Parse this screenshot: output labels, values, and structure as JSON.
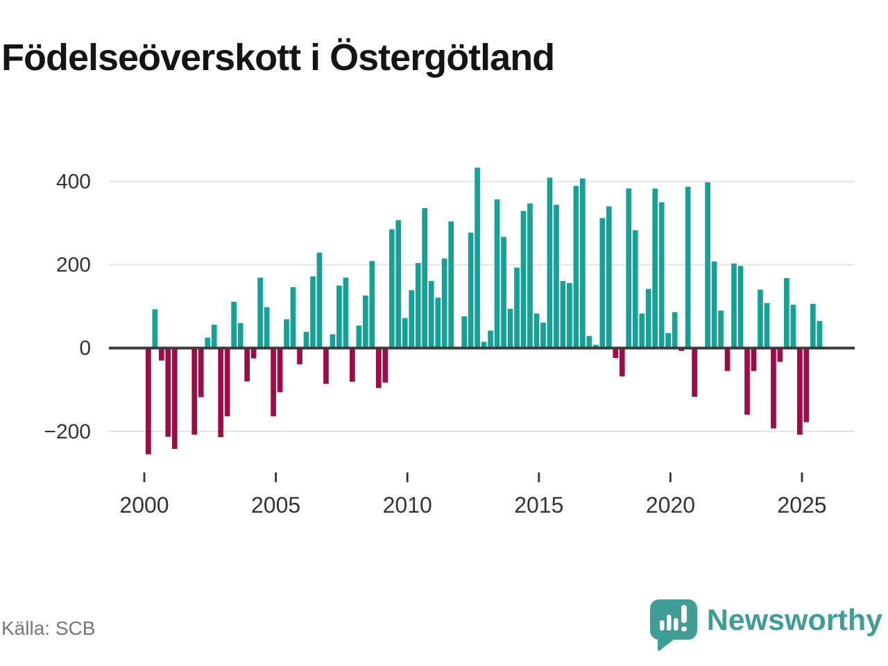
{
  "title": "Födelseöverskott i Östergötland",
  "source": "Källa: SCB",
  "branding": {
    "wordmark": "Newsworthy",
    "logo_icon": "bar-chart-speech-bubble-icon"
  },
  "colors": {
    "positive": "#17a095",
    "negative": "#9d0c45",
    "grid": "#e2e2e2",
    "zero_line": "#3c3c3c",
    "axis_text": "#333333",
    "title_text": "#141414",
    "source_text": "#767676",
    "brand_teal": "#3f9d95",
    "background": "#ffffff"
  },
  "chart_data": {
    "type": "bar",
    "title": "Födelseöverskott i Östergötland",
    "frequency": "quarterly",
    "xlabel": "",
    "ylabel": "",
    "x_ticks": [
      2000,
      2005,
      2010,
      2015,
      2020,
      2025
    ],
    "x_tick_labels": [
      "2000",
      "2005",
      "2010",
      "2015",
      "2020",
      "2025"
    ],
    "y_ticks": [
      400,
      200,
      0,
      -200
    ],
    "y_tick_labels": [
      "400",
      "200",
      "0",
      "−200"
    ],
    "ylim": [
      -270,
      450
    ],
    "grid": true,
    "legend": false,
    "missing_quarters": [
      "2001-Q2",
      "2001-Q3",
      "2011-Q4",
      "2021-Q1"
    ],
    "years": [
      {
        "year": 2000,
        "values": [
          -255,
          93,
          -30,
          -213
        ]
      },
      {
        "year": 2001,
        "values": [
          -242,
          null,
          null,
          -208
        ]
      },
      {
        "year": 2002,
        "values": [
          -118,
          25,
          56,
          -214
        ]
      },
      {
        "year": 2003,
        "values": [
          -164,
          111,
          60,
          -80
        ]
      },
      {
        "year": 2004,
        "values": [
          -25,
          169,
          98,
          -164
        ]
      },
      {
        "year": 2005,
        "values": [
          -106,
          69,
          146,
          -39
        ]
      },
      {
        "year": 2006,
        "values": [
          39,
          172,
          229,
          -86
        ]
      },
      {
        "year": 2007,
        "values": [
          33,
          150,
          169,
          -81
        ]
      },
      {
        "year": 2008,
        "values": [
          54,
          126,
          209,
          -96
        ]
      },
      {
        "year": 2009,
        "values": [
          -83,
          285,
          307,
          72
        ]
      },
      {
        "year": 2010,
        "values": [
          139,
          204,
          336,
          161
        ]
      },
      {
        "year": 2011,
        "values": [
          121,
          215,
          304,
          null
        ]
      },
      {
        "year": 2012,
        "values": [
          76,
          277,
          433,
          15
        ]
      },
      {
        "year": 2013,
        "values": [
          42,
          357,
          267,
          94
        ]
      },
      {
        "year": 2014,
        "values": [
          193,
          329,
          347,
          83
        ]
      },
      {
        "year": 2015,
        "values": [
          61,
          409,
          344,
          161
        ]
      },
      {
        "year": 2016,
        "values": [
          156,
          389,
          407,
          29
        ]
      },
      {
        "year": 2017,
        "values": [
          8,
          312,
          340,
          -24
        ]
      },
      {
        "year": 2018,
        "values": [
          -68,
          383,
          283,
          83
        ]
      },
      {
        "year": 2019,
        "values": [
          142,
          383,
          350,
          36
        ]
      },
      {
        "year": 2020,
        "values": [
          86,
          -7,
          387,
          -117
        ]
      },
      {
        "year": 2021,
        "values": [
          null,
          398,
          208,
          90
        ]
      },
      {
        "year": 2022,
        "values": [
          -55,
          203,
          197,
          -160
        ]
      },
      {
        "year": 2023,
        "values": [
          -55,
          140,
          108,
          -193
        ]
      },
      {
        "year": 2024,
        "values": [
          -33,
          168,
          104,
          -208
        ]
      },
      {
        "year": 2025,
        "values": [
          -178,
          106,
          65
        ]
      }
    ]
  }
}
